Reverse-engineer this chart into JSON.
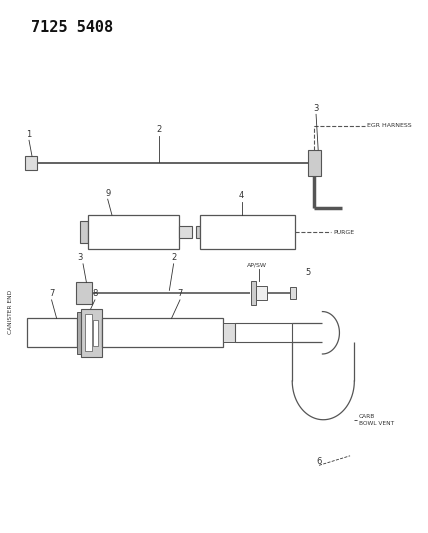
{
  "title": "7125 5408",
  "bg_color": "#ffffff",
  "fg_color": "#333333",
  "line_color": "#555555",
  "labels": {
    "egr_harness": "EGR HARNESS",
    "purge": "PURGE",
    "canister_end": "CANISTER END",
    "ap_sw": "AP/SW",
    "carb_bowl_vent": "CARB\nBOWL VENT"
  }
}
